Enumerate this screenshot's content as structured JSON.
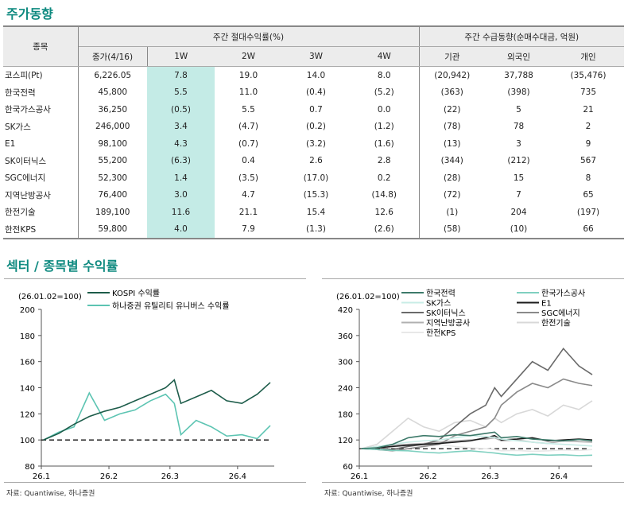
{
  "title1": "주가동향",
  "title2": "섹터 / 종목별 수익률",
  "table": {
    "h_stock": "종목",
    "h_ret": "주간 절대수익률(%)",
    "h_flow": "주간 수급동향(순매수대금, 억원)",
    "cols": [
      "종가(4/16)",
      "1W",
      "2W",
      "3W",
      "4W",
      "기관",
      "외국인",
      "개인"
    ],
    "rows": [
      [
        "코스피(Pt)",
        "6,226.05",
        "7.8",
        "19.0",
        "14.0",
        "8.0",
        "(20,942)",
        "37,788",
        "(35,476)"
      ],
      [
        "한국전력",
        "45,800",
        "5.5",
        "11.0",
        "(0.4)",
        "(5.2)",
        "(363)",
        "(398)",
        "735"
      ],
      [
        "한국가스공사",
        "36,250",
        "(0.5)",
        "5.5",
        "0.7",
        "0.0",
        "(22)",
        "5",
        "21"
      ],
      [
        "SK가스",
        "246,000",
        "3.4",
        "(4.7)",
        "(0.2)",
        "(1.2)",
        "(78)",
        "78",
        "2"
      ],
      [
        "E1",
        "98,100",
        "4.3",
        "(0.7)",
        "(3.2)",
        "(1.6)",
        "(13)",
        "3",
        "9"
      ],
      [
        "SK이터닉스",
        "55,200",
        "(6.3)",
        "0.4",
        "2.6",
        "2.8",
        "(344)",
        "(212)",
        "567"
      ],
      [
        "SGC에너지",
        "52,300",
        "1.4",
        "(3.5)",
        "(17.0)",
        "0.2",
        "(28)",
        "15",
        "8"
      ],
      [
        "지역난방공사",
        "76,400",
        "3.0",
        "4.7",
        "(15.3)",
        "(14.8)",
        "(72)",
        "7",
        "65"
      ],
      [
        "한전기술",
        "189,100",
        "11.6",
        "21.1",
        "15.4",
        "12.6",
        "(1)",
        "204",
        "(197)"
      ],
      [
        "한전KPS",
        "59,800",
        "4.0",
        "7.9",
        "(1.3)",
        "(2.6)",
        "(58)",
        "(10)",
        "66"
      ]
    ]
  },
  "source": "자료: Quantiwise, 하나증권",
  "chart_data": [
    {
      "type": "line",
      "note": "(26.01.02=100)",
      "ylim": [
        80,
        200
      ],
      "yticks": [
        80,
        100,
        120,
        140,
        160,
        180,
        200
      ],
      "xticks": [
        "26.1",
        "26.2",
        "26.3",
        "26.4"
      ],
      "baseline": 100,
      "x": [
        "01-02",
        "01-09",
        "01-16",
        "01-23",
        "01-30",
        "02-06",
        "02-13",
        "02-20",
        "02-27",
        "03-03",
        "03-06",
        "03-13",
        "03-20",
        "03-27",
        "04-03",
        "04-10",
        "04-16"
      ],
      "series": [
        {
          "name": "KOSPI 수익률",
          "color": "#1d5c4a",
          "values": [
            100,
            105,
            112,
            118,
            122,
            125,
            130,
            135,
            140,
            146,
            128,
            133,
            138,
            130,
            128,
            135,
            144
          ]
        },
        {
          "name": "하나증권 유틸리티 유니버스 수익률",
          "color": "#5cc4b2",
          "values": [
            100,
            106,
            110,
            136,
            115,
            120,
            123,
            130,
            135,
            128,
            104,
            115,
            110,
            103,
            104,
            101,
            111
          ]
        }
      ]
    },
    {
      "type": "line",
      "note": "(26.01.02=100)",
      "ylim": [
        60,
        420
      ],
      "yticks": [
        60,
        120,
        180,
        240,
        300,
        360,
        420
      ],
      "xticks": [
        "26.1",
        "26.2",
        "26.3",
        "26.4"
      ],
      "baseline": 100,
      "x": [
        "01-02",
        "01-09",
        "01-16",
        "01-23",
        "01-30",
        "02-06",
        "02-13",
        "02-20",
        "02-27",
        "03-03",
        "03-06",
        "03-13",
        "03-20",
        "03-27",
        "04-03",
        "04-10",
        "04-16"
      ],
      "series": [
        {
          "name": "한국전력",
          "color": "#3d7a6a",
          "values": [
            100,
            102,
            110,
            125,
            130,
            128,
            132,
            130,
            135,
            138,
            125,
            128,
            122,
            120,
            118,
            121,
            118
          ]
        },
        {
          "name": "한국가스공사",
          "color": "#7fd0c0",
          "values": [
            100,
            98,
            96,
            95,
            92,
            90,
            93,
            95,
            92,
            90,
            88,
            85,
            87,
            85,
            86,
            84,
            85
          ]
        },
        {
          "name": "SK가스",
          "color": "#c8ece6",
          "values": [
            100,
            105,
            110,
            115,
            118,
            120,
            125,
            130,
            128,
            126,
            122,
            118,
            115,
            112,
            110,
            108,
            106
          ]
        },
        {
          "name": "E1",
          "color": "#1a1a1a",
          "values": [
            100,
            102,
            105,
            108,
            110,
            112,
            115,
            118,
            125,
            130,
            120,
            122,
            125,
            118,
            120,
            122,
            120
          ]
        },
        {
          "name": "SK이터닉스",
          "color": "#6a6a6a",
          "values": [
            100,
            102,
            98,
            105,
            110,
            120,
            150,
            180,
            200,
            240,
            220,
            260,
            300,
            280,
            330,
            290,
            270
          ]
        },
        {
          "name": "SGC에너지",
          "color": "#8a8a8a",
          "values": [
            100,
            98,
            95,
            100,
            105,
            110,
            130,
            140,
            150,
            170,
            200,
            230,
            250,
            240,
            260,
            250,
            245
          ]
        },
        {
          "name": "지역난방공사",
          "color": "#b0b0b0",
          "values": [
            100,
            105,
            108,
            110,
            112,
            115,
            118,
            120,
            122,
            125,
            118,
            120,
            115,
            112,
            118,
            116,
            115
          ]
        },
        {
          "name": "한전기술",
          "color": "#d8d8d8",
          "values": [
            100,
            110,
            140,
            170,
            150,
            140,
            160,
            165,
            150,
            170,
            160,
            180,
            190,
            175,
            200,
            190,
            210
          ]
        },
        {
          "name": "한전KPS",
          "color": "#e8e8e8",
          "values": [
            100,
            102,
            104,
            106,
            108,
            110,
            105,
            102,
            100,
            98,
            95,
            96,
            94,
            95,
            97,
            96,
            98
          ]
        }
      ]
    }
  ]
}
